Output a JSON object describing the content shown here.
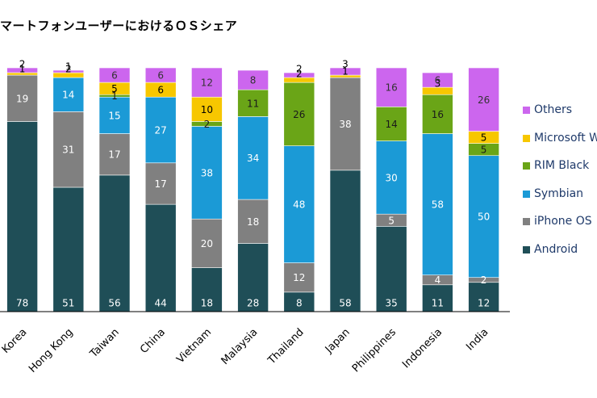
{
  "title": "マートフォンユーザーにおけるＯＳシェア",
  "chart_data": {
    "type": "bar",
    "stacked": true,
    "categories": [
      "Korea",
      "Hong Kong",
      "Taiwan",
      "China",
      "Vietnam",
      "Malaysia",
      "Thailand",
      "Japan",
      "Philippines",
      "Indonesia",
      "India"
    ],
    "series": [
      {
        "name": "Android",
        "color": "#1f4e57",
        "values": [
          78,
          51,
          56,
          44,
          18,
          28,
          8,
          58,
          35,
          11,
          12
        ]
      },
      {
        "name": "iPhone OS",
        "color": "#808080",
        "values": [
          19,
          31,
          17,
          17,
          20,
          18,
          12,
          38,
          5,
          4,
          2
        ]
      },
      {
        "name": "Symbian",
        "color": "#1b9ad6",
        "values": [
          0,
          14,
          15,
          27,
          38,
          34,
          48,
          0,
          30,
          58,
          50
        ]
      },
      {
        "name": "RIM BlackBerry",
        "color": "#6aa517",
        "values": [
          0,
          0,
          1,
          0,
          2,
          11,
          26,
          0,
          14,
          16,
          5
        ]
      },
      {
        "name": "Microsoft Windows",
        "color": "#f7c700",
        "values": [
          1,
          2,
          5,
          6,
          10,
          0,
          2,
          1,
          0,
          3,
          5
        ]
      },
      {
        "name": "Others",
        "color": "#cc66ee",
        "values": [
          2,
          1,
          6,
          6,
          12,
          8,
          2,
          3,
          16,
          6,
          26
        ]
      }
    ],
    "value_labels": [
      [
        "78",
        "19",
        "",
        "",
        "1",
        "2"
      ],
      [
        "51",
        "31",
        "14",
        "",
        "2",
        "1"
      ],
      [
        "56",
        "17",
        "15",
        "1",
        "5",
        "6"
      ],
      [
        "44",
        "17",
        "27",
        "",
        "6",
        "6"
      ],
      [
        "18",
        "20",
        "38",
        "2",
        "10",
        "12"
      ],
      [
        "28",
        "18",
        "34",
        "11",
        "",
        "8"
      ],
      [
        "8",
        "12",
        "48",
        "26",
        "2",
        "2"
      ],
      [
        "58",
        "38",
        "",
        "",
        "1",
        "3"
      ],
      [
        "35",
        "5",
        "30",
        "14",
        "",
        "16"
      ],
      [
        "11",
        "4",
        "58",
        "16",
        "3",
        "6"
      ],
      [
        "12",
        "2",
        "50",
        "5",
        "5",
        "26"
      ]
    ],
    "ylim": [
      0,
      100
    ],
    "legend": {
      "placement": "right",
      "labels": [
        "Others",
        "Microsoft W",
        "RIM Black",
        "Symbian",
        "iPhone OS",
        "Android"
      ],
      "colors": [
        "#cc66ee",
        "#f7c700",
        "#6aa517",
        "#1b9ad6",
        "#808080",
        "#1f4e57"
      ]
    }
  }
}
